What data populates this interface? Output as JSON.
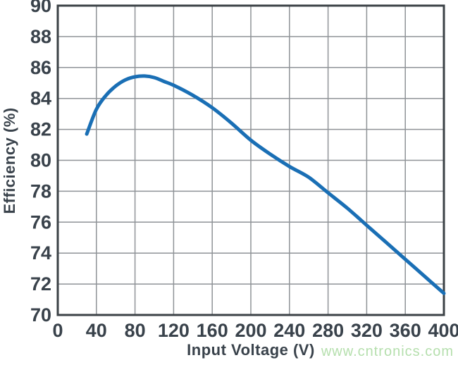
{
  "chart_data": {
    "type": "line",
    "title": "",
    "xlabel": "Input Voltage (V)",
    "ylabel": "Efficiency (%)",
    "xlim": [
      0,
      400
    ],
    "ylim": [
      70,
      90
    ],
    "x_ticks": [
      0,
      40,
      80,
      120,
      160,
      200,
      240,
      280,
      320,
      360,
      400
    ],
    "y_ticks": [
      70,
      72,
      74,
      76,
      78,
      80,
      82,
      84,
      86,
      88,
      90
    ],
    "grid": true,
    "legend": false,
    "series": [
      {
        "name": "efficiency-vs-input-voltage",
        "color": "#1a6fb5",
        "x": [
          30,
          40,
          50,
          60,
          70,
          80,
          90,
          100,
          110,
          120,
          140,
          160,
          180,
          200,
          220,
          240,
          260,
          280,
          300,
          320,
          340,
          360,
          380,
          400
        ],
        "y": [
          81.7,
          83.3,
          84.2,
          84.8,
          85.2,
          85.4,
          85.45,
          85.35,
          85.1,
          84.85,
          84.2,
          83.4,
          82.4,
          81.3,
          80.4,
          79.6,
          78.9,
          77.9,
          76.9,
          75.8,
          74.7,
          73.6,
          72.5,
          71.4
        ]
      }
    ]
  },
  "colors": {
    "curve": "#1a6fb5",
    "grid": "#8f9397",
    "border": "#3b4146",
    "tick_text": "#39424b",
    "background": "#ffffff"
  },
  "watermark": {
    "text": "www.cntronics.com",
    "color": "#b5dfad"
  }
}
